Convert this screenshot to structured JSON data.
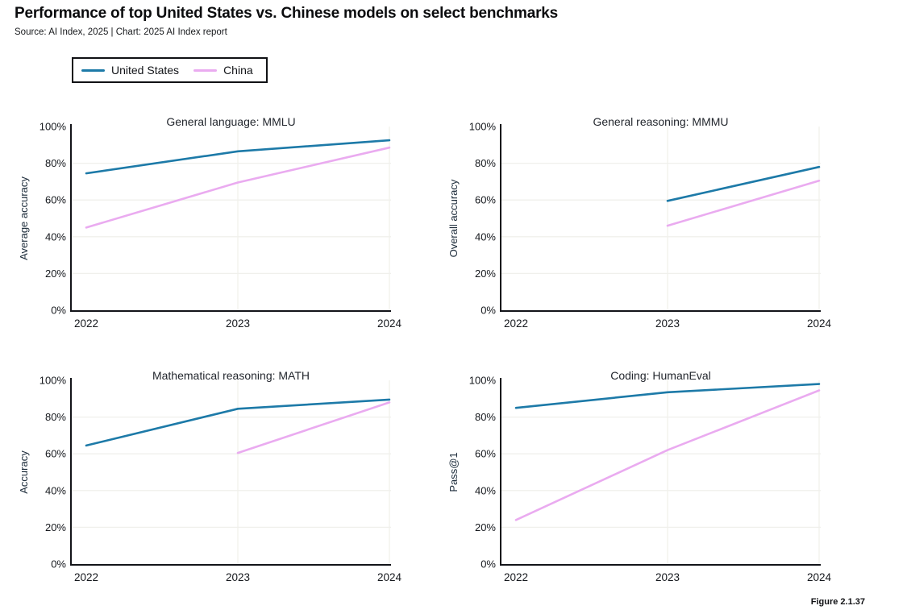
{
  "header": {
    "title": "Performance of top United States vs. Chinese models on select benchmarks",
    "source": "Source: AI Index, 2025 | Chart: 2025 AI Index report"
  },
  "legend": {
    "items": [
      {
        "label": "United States",
        "color": "#1d7aa8"
      },
      {
        "label": "China",
        "color": "#eaabf0"
      }
    ]
  },
  "figure_label": "Figure 2.1.37",
  "colors": {
    "axis": "#131419",
    "grid": "#f0f0ec",
    "tick_text": "#15181d",
    "title_text": "#23272e",
    "ylabel_text": "#1c2b3a",
    "us_line": "#1d7aa8",
    "china_line": "#eaabf0"
  },
  "chart_data": [
    {
      "type": "line",
      "title": "General language: MMLU",
      "ylabel": "Average accuracy",
      "x": [
        2022,
        2023,
        2024
      ],
      "ylim": [
        0,
        100
      ],
      "yticks": [
        "0%",
        "20%",
        "40%",
        "60%",
        "80%",
        "100%"
      ],
      "legend_position": "top-left-outside",
      "grid": true,
      "series": [
        {
          "name": "United States",
          "color": "#1d7aa8",
          "values": [
            74.5,
            86.5,
            92.5
          ]
        },
        {
          "name": "China",
          "color": "#eaabf0",
          "values": [
            45,
            69.5,
            88.5
          ]
        }
      ]
    },
    {
      "type": "line",
      "title": "General reasoning: MMMU",
      "ylabel": "Overall accuracy",
      "x": [
        2022,
        2023,
        2024
      ],
      "ylim": [
        0,
        100
      ],
      "yticks": [
        "0%",
        "20%",
        "40%",
        "60%",
        "80%",
        "100%"
      ],
      "grid": true,
      "series": [
        {
          "name": "United States",
          "color": "#1d7aa8",
          "values": [
            null,
            59.5,
            78
          ]
        },
        {
          "name": "China",
          "color": "#eaabf0",
          "values": [
            null,
            46,
            70.5
          ]
        }
      ]
    },
    {
      "type": "line",
      "title": "Mathematical reasoning: MATH",
      "ylabel": "Accuracy",
      "x": [
        2022,
        2023,
        2024
      ],
      "ylim": [
        0,
        100
      ],
      "yticks": [
        "0%",
        "20%",
        "40%",
        "60%",
        "80%",
        "100%"
      ],
      "grid": true,
      "series": [
        {
          "name": "United States",
          "color": "#1d7aa8",
          "values": [
            64.5,
            84.5,
            89.5
          ]
        },
        {
          "name": "China",
          "color": "#eaabf0",
          "values": [
            null,
            60.5,
            88
          ]
        }
      ]
    },
    {
      "type": "line",
      "title": "Coding: HumanEval",
      "ylabel": "Pass@1",
      "x": [
        2022,
        2023,
        2024
      ],
      "ylim": [
        0,
        100
      ],
      "yticks": [
        "0%",
        "20%",
        "40%",
        "60%",
        "80%",
        "100%"
      ],
      "grid": true,
      "series": [
        {
          "name": "United States",
          "color": "#1d7aa8",
          "values": [
            85,
            93.5,
            98
          ]
        },
        {
          "name": "China",
          "color": "#eaabf0",
          "values": [
            24,
            62,
            94.5
          ]
        }
      ]
    }
  ]
}
